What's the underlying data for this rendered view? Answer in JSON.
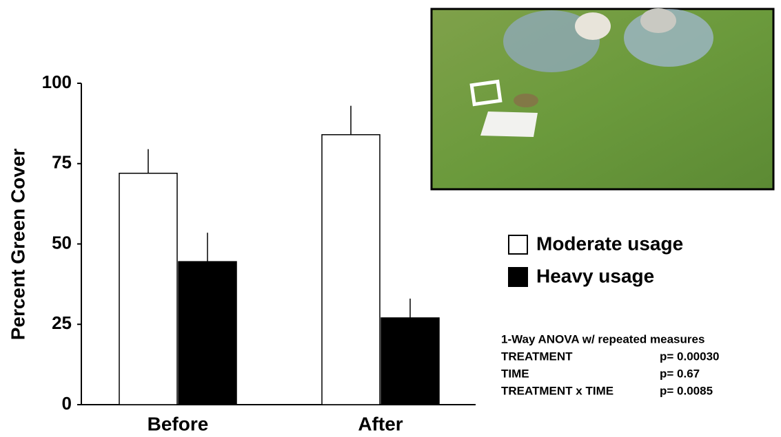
{
  "chart_data": {
    "type": "bar",
    "y_label": "Percent Green Cover",
    "categories": [
      "Before",
      "After"
    ],
    "series": [
      {
        "name": "Moderate usage",
        "color": "#ffffff",
        "values": [
          72,
          84
        ],
        "errors": [
          7.5,
          9
        ]
      },
      {
        "name": "Heavy usage",
        "color": "#000000",
        "values": [
          44.5,
          27
        ],
        "errors": [
          9,
          6
        ]
      }
    ],
    "ylim": [
      0,
      100
    ],
    "yticks": [
      0,
      25,
      50,
      75,
      100
    ],
    "anova": {
      "title": "1-Way ANOVA w/ repeated measures",
      "rows": [
        [
          "TREATMENT",
          "p= 0.00030"
        ],
        [
          "TIME",
          "p= 0.67"
        ],
        [
          "TREATMENT x TIME",
          "p= 0.0085"
        ]
      ]
    }
  }
}
